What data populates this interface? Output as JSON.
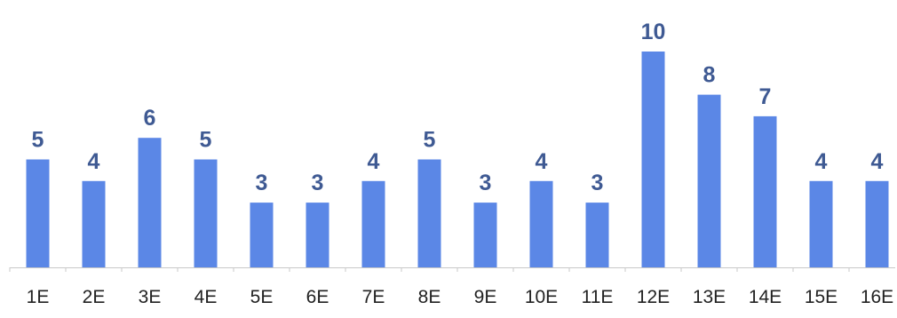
{
  "chart_data": {
    "type": "bar",
    "categories": [
      "1E",
      "2E",
      "3E",
      "4E",
      "5E",
      "6E",
      "7E",
      "8E",
      "9E",
      "10E",
      "11E",
      "12E",
      "13E",
      "14E",
      "15E",
      "16E"
    ],
    "values": [
      5,
      4,
      6,
      5,
      3,
      3,
      4,
      5,
      3,
      4,
      3,
      10,
      8,
      7,
      4,
      4
    ],
    "title": "",
    "xlabel": "",
    "ylabel": "",
    "ylim": [
      0,
      10
    ],
    "grid": false,
    "data_labels": true,
    "colors": {
      "bar": "#5b87e6",
      "value_label": "#3f5a93",
      "tick_label": "#222222",
      "axis": "#c8c8c8"
    }
  }
}
